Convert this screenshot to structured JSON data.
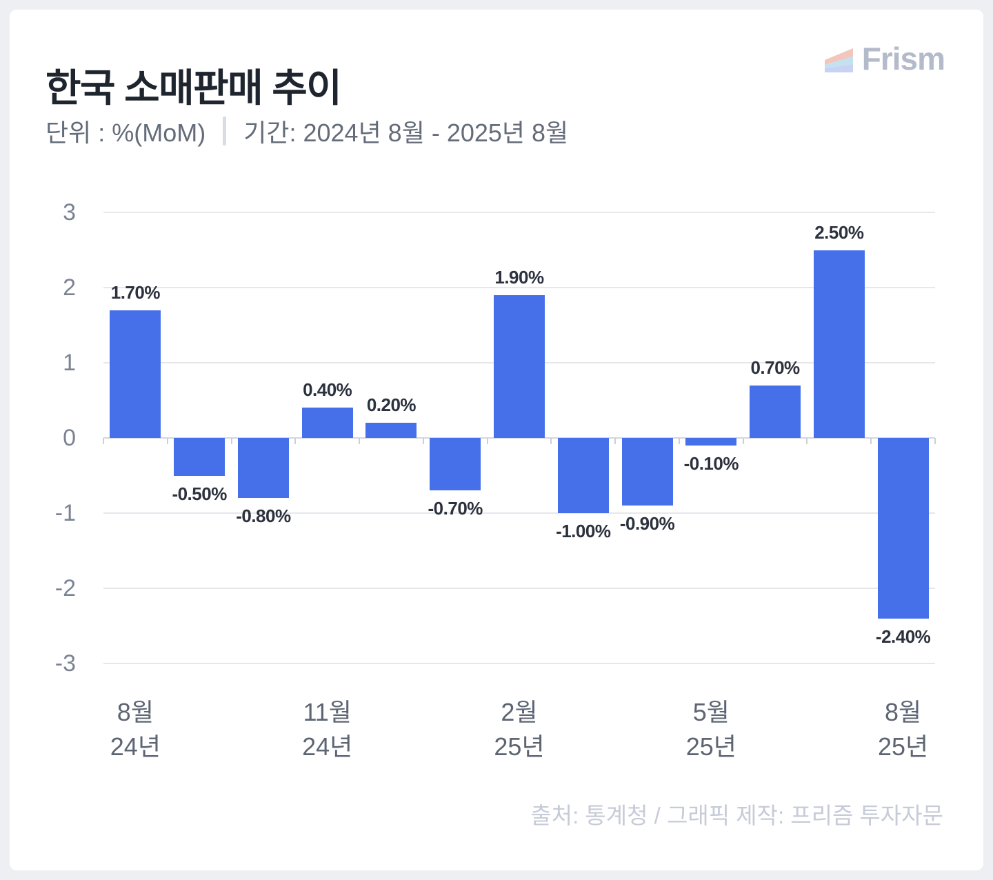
{
  "header": {
    "title": "한국 소매판매 추이",
    "brand": "Frism",
    "unit_label": "단위 : %(MoM)",
    "period_label": "기간: 2024년 8월 - 2025년 8월"
  },
  "footer": {
    "source": "출처: 통계청 / 그래픽 제작: 프리즘 투자자문"
  },
  "colors": {
    "bar": "#4570EA",
    "grid": "#e5e7eb",
    "baseline": "#d3d7dd",
    "tick": "#cbcfd6",
    "logo_band_top": "#f2c6bc",
    "logo_band_middle": "#c3e1f0",
    "logo_band_bottom": "#c8d3f4",
    "logo_text": "#b3bac9"
  },
  "chart_data": {
    "type": "bar",
    "title": "한국 소매판매 추이",
    "unit": "%(MoM)",
    "period": "2024년 8월 - 2025년 8월",
    "categories": [
      "2024-08",
      "2024-09",
      "2024-10",
      "2024-11",
      "2024-12",
      "2025-01",
      "2025-02",
      "2025-03",
      "2025-04",
      "2025-05",
      "2025-06",
      "2025-07",
      "2025-08"
    ],
    "values": [
      1.7,
      -0.5,
      -0.8,
      0.4,
      0.2,
      -0.7,
      1.9,
      -1.0,
      -0.9,
      -0.1,
      0.7,
      2.5,
      -2.4
    ],
    "data_labels": [
      "1.70%",
      "-0.50%",
      "-0.80%",
      "0.40%",
      "0.20%",
      "-0.70%",
      "1.90%",
      "-1.00%",
      "-0.90%",
      "-0.10%",
      "0.70%",
      "2.50%",
      "-2.40%"
    ],
    "x_ticks": [
      {
        "index": 0,
        "line1": "8월",
        "line2": "24년"
      },
      {
        "index": 3,
        "line1": "11월",
        "line2": "24년"
      },
      {
        "index": 6,
        "line1": "2월",
        "line2": "25년"
      },
      {
        "index": 9,
        "line1": "5월",
        "line2": "25년"
      },
      {
        "index": 12,
        "line1": "8월",
        "line2": "25년"
      }
    ],
    "y_ticks": [
      "3",
      "2",
      "1",
      "0",
      "-1",
      "-2",
      "-3"
    ],
    "ylim": [
      -3,
      3
    ],
    "grid": true,
    "legend": false,
    "bar_color": "#4570EA",
    "xlabel": "",
    "ylabel": ""
  }
}
